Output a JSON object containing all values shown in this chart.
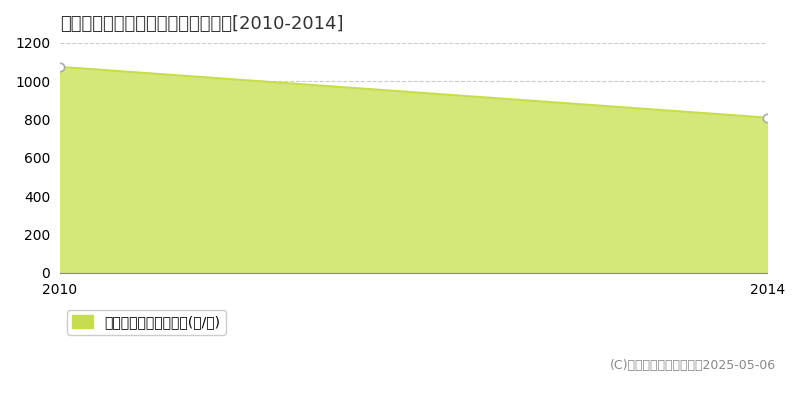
{
  "title": "大島郡喜界町大朝戸　農地価格推移[2010-2014]",
  "x": [
    2010,
    2014
  ],
  "y": [
    1075,
    810
  ],
  "xlim": [
    2010,
    2014
  ],
  "ylim": [
    0,
    1200
  ],
  "yticks": [
    0,
    200,
    400,
    600,
    800,
    1000,
    1200
  ],
  "xticks": [
    2010,
    2014
  ],
  "line_color": "#c8dc50",
  "fill_color": "#d4e87a",
  "marker_color": "#ffffff",
  "marker_edge_color": "#aaaaaa",
  "grid_color": "#cccccc",
  "background_color": "#ffffff",
  "plot_bg_color": "#ffffff",
  "legend_label": "農地価格　平均坪単価(円/坪)",
  "legend_marker_color": "#c8dc50",
  "copyright_text": "(C)土地価格ドットコム　2025-05-06",
  "title_fontsize": 13,
  "axis_fontsize": 10,
  "legend_fontsize": 10,
  "copyright_fontsize": 9
}
